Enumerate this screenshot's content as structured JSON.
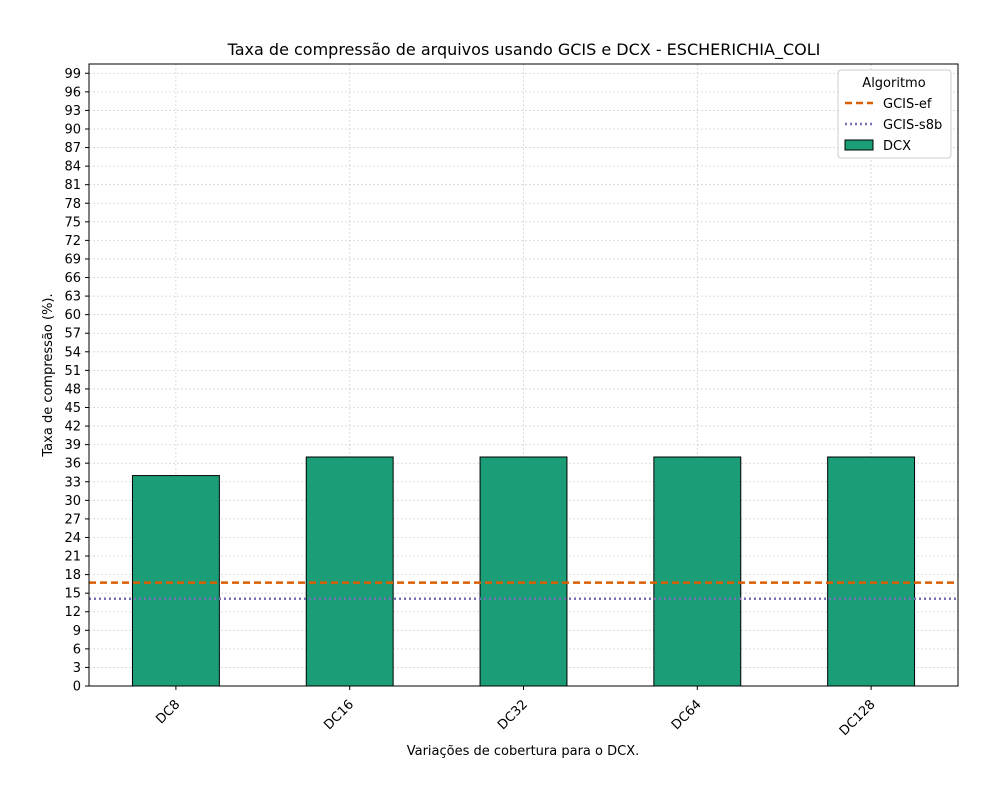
{
  "chart_data": {
    "type": "bar",
    "title": "Taxa de compressão de arquivos usando GCIS e DCX -  ESCHERICHIA_COLI",
    "xlabel": "Variações de cobertura para o DCX.",
    "ylabel": "Taxa de compressão (%).",
    "categories": [
      "DC8",
      "DC16",
      "DC32",
      "DC64",
      "DC128"
    ],
    "series": [
      {
        "name": "DCX",
        "values": [
          34,
          37,
          37,
          37,
          37
        ],
        "color": "#1b9e77"
      }
    ],
    "reference_lines": [
      {
        "name": "GCIS-ef",
        "value": 16.7,
        "color": "#d95f02",
        "style": "dashed"
      },
      {
        "name": "GCIS-s8b",
        "value": 14.1,
        "color": "#7570b3",
        "style": "dotted"
      }
    ],
    "ylim": [
      0,
      100.5
    ],
    "yticks": [
      0,
      3,
      6,
      9,
      12,
      15,
      18,
      21,
      24,
      27,
      30,
      33,
      36,
      39,
      42,
      45,
      48,
      51,
      54,
      57,
      60,
      63,
      66,
      69,
      72,
      75,
      78,
      81,
      84,
      87,
      90,
      93,
      96,
      99
    ],
    "grid": true,
    "legend": {
      "title": "Algoritmo",
      "position": "top-right",
      "entries": [
        "GCIS-ef",
        "GCIS-s8b",
        "DCX"
      ]
    }
  }
}
